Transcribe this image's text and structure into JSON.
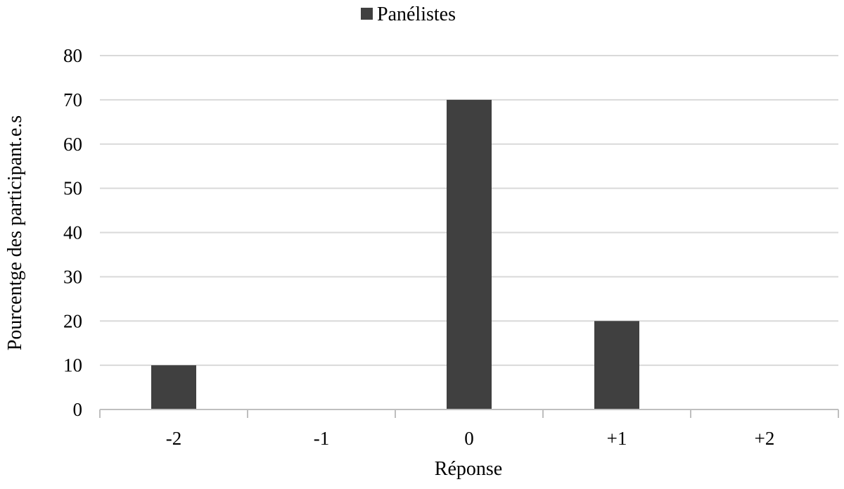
{
  "chart_data": {
    "type": "bar",
    "categories": [
      "-2",
      "-1",
      "0",
      "+1",
      "+2"
    ],
    "series": [
      {
        "name": "Panélistes",
        "values": [
          10,
          0,
          70,
          20,
          0
        ]
      }
    ],
    "xlabel": "Réponse",
    "ylabel": "Pourcentge des participant.e.s",
    "ylim": [
      0,
      80
    ],
    "yticks": [
      0,
      10,
      20,
      30,
      40,
      50,
      60,
      70,
      80
    ],
    "grid": true,
    "legend_position": "top-center",
    "colors": {
      "bar": "#404040",
      "grid": "#d9d9d9",
      "axis": "#bfbfbf"
    }
  }
}
